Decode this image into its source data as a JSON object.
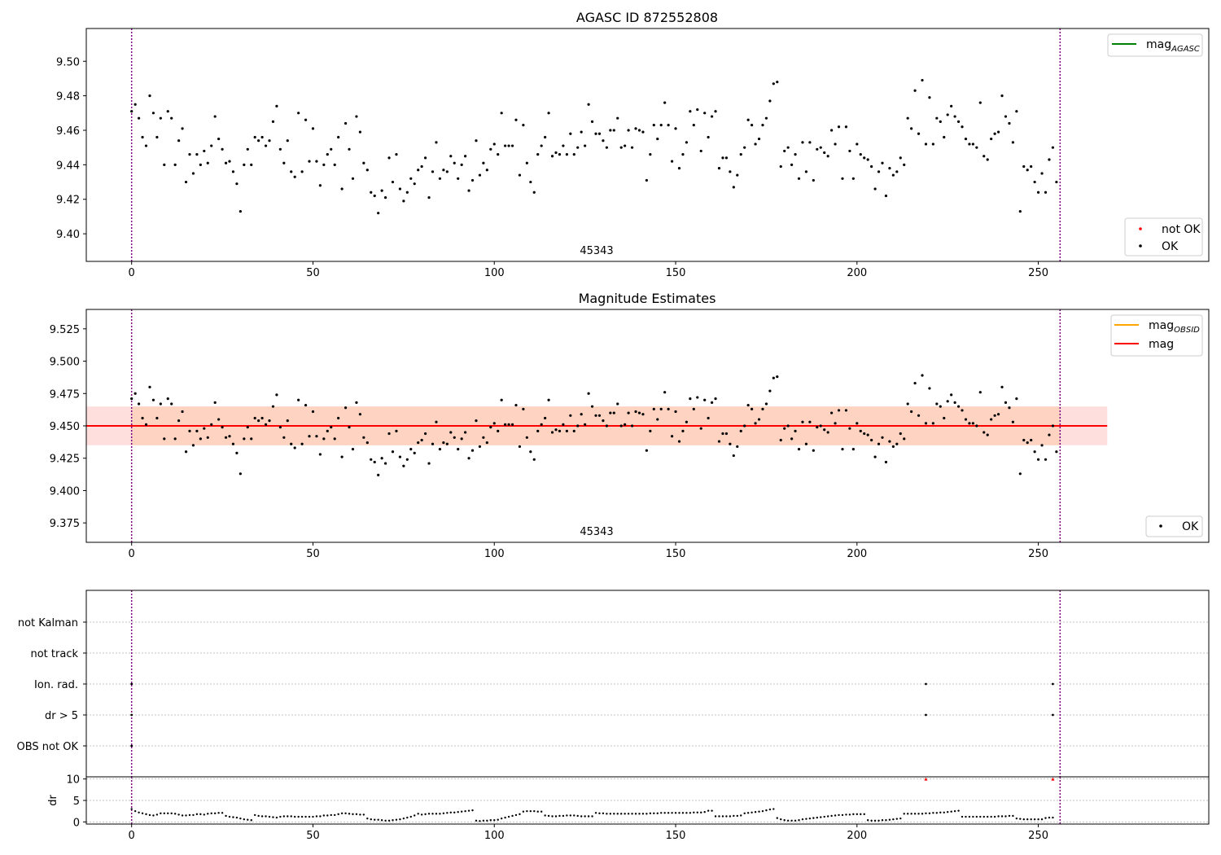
{
  "figure": {
    "title": "AGASC ID 872552808",
    "obsid_label": "45343"
  },
  "chart_data": [
    {
      "type": "scatter",
      "title": "AGASC ID 872552808",
      "xlim": [
        -12.5,
        297
      ],
      "ylim": [
        9.384,
        9.519
      ],
      "xticks": [
        0,
        50,
        100,
        150,
        200,
        250
      ],
      "yticks": [
        9.4,
        9.42,
        9.44,
        9.46,
        9.48,
        9.5
      ],
      "ytick_labels": [
        "9.40",
        "9.42",
        "9.44",
        "9.46",
        "9.48",
        "9.50"
      ],
      "vlines": [
        0,
        256
      ],
      "annotation": "45343",
      "legend_lines": [
        {
          "label": "mag",
          "sub": "AGASC",
          "color": "#008000"
        }
      ],
      "legend_markers": [
        {
          "label": "not OK",
          "color": "#ff0000"
        },
        {
          "label": "OK",
          "color": "#000000"
        }
      ],
      "series": [
        {
          "name": "OK",
          "color": "#000000",
          "y": [
            9.471,
            9.475,
            9.467,
            9.456,
            9.451,
            9.48,
            9.47,
            9.456,
            9.467,
            9.44,
            9.471,
            9.467,
            9.44,
            9.454,
            9.461,
            9.43,
            9.446,
            9.435,
            9.446,
            9.44,
            9.448,
            9.441,
            9.451,
            9.468,
            9.455,
            9.449,
            9.441,
            9.442,
            9.436,
            9.429,
            9.413,
            9.44,
            9.449,
            9.44,
            9.456,
            9.454,
            9.456,
            9.451,
            9.454,
            9.465,
            9.474,
            9.449,
            9.441,
            9.454,
            9.436,
            9.433,
            9.47,
            9.436,
            9.466,
            9.442,
            9.461,
            9.442,
            9.428,
            9.44,
            9.446,
            9.449,
            9.44,
            9.456,
            9.426,
            9.464,
            9.449,
            9.432,
            9.468,
            9.459,
            9.441,
            9.437,
            9.424,
            9.422,
            9.412,
            9.425,
            9.421,
            9.444,
            9.43,
            9.446,
            9.426,
            9.419,
            9.424,
            9.432,
            9.429,
            9.437,
            9.439,
            9.444,
            9.421,
            9.436,
            9.453,
            9.432,
            9.437,
            9.436,
            9.445,
            9.441,
            9.432,
            9.44,
            9.445,
            9.425,
            9.431,
            9.454,
            9.434,
            9.441,
            9.437,
            9.449,
            9.452,
            9.446,
            9.47,
            9.451,
            9.451,
            9.451,
            9.466,
            9.434,
            9.463,
            9.441,
            9.43,
            9.424,
            9.446,
            9.451,
            9.456,
            9.47,
            9.445,
            9.447,
            9.446,
            9.451,
            9.446,
            9.458,
            9.446,
            9.45,
            9.459,
            9.451,
            9.475,
            9.465,
            9.458,
            9.458,
            9.454,
            9.45,
            9.46,
            9.46,
            9.467,
            9.45,
            9.451,
            9.46,
            9.45,
            9.461,
            9.46,
            9.459,
            9.431,
            9.446,
            9.463,
            9.455,
            9.463,
            9.476,
            9.463,
            9.442,
            9.461,
            9.438,
            9.446,
            9.453,
            9.471,
            9.463,
            9.472,
            9.448,
            9.47,
            9.456,
            9.468,
            9.471,
            9.438,
            9.444,
            9.444,
            9.436,
            9.427,
            9.434,
            9.446,
            9.45,
            9.466,
            9.463,
            9.452,
            9.455,
            9.463,
            9.467,
            9.477,
            9.487,
            9.488,
            9.439,
            9.448,
            9.45,
            9.44,
            9.446,
            9.432,
            9.453,
            9.436,
            9.453,
            9.431,
            9.449,
            9.45,
            9.447,
            9.445,
            9.46,
            9.452,
            9.462,
            9.432,
            9.462,
            9.448,
            9.432,
            9.452,
            9.446,
            9.444,
            9.443,
            9.439,
            9.426,
            9.436,
            9.441,
            9.422,
            9.438,
            9.434,
            9.436,
            9.444,
            9.44,
            9.467,
            9.461,
            9.483,
            9.458,
            9.489,
            9.452,
            9.479,
            9.452,
            9.467,
            9.465,
            9.456,
            9.469,
            9.474,
            9.468,
            9.465,
            9.462,
            9.455,
            9.452,
            9.452,
            9.45,
            9.476,
            9.445,
            9.443,
            9.455,
            9.458,
            9.459,
            9.48,
            9.468,
            9.464,
            9.453,
            9.471,
            9.413,
            9.439,
            9.437,
            9.439,
            9.43,
            9.424,
            9.435,
            9.424,
            9.443,
            9.45,
            9.43
          ]
        }
      ]
    },
    {
      "type": "scatter",
      "title": "Magnitude Estimates",
      "xlim": [
        -12.5,
        297
      ],
      "ylim": [
        9.36,
        9.54
      ],
      "xticks": [
        0,
        50,
        100,
        150,
        200,
        250
      ],
      "yticks": [
        9.375,
        9.4,
        9.425,
        9.45,
        9.475,
        9.5,
        9.525
      ],
      "ytick_labels": [
        "9.375",
        "9.400",
        "9.425",
        "9.450",
        "9.475",
        "9.500",
        "9.525"
      ],
      "vlines": [
        0,
        256
      ],
      "annotation": "45343",
      "hlines": [
        {
          "name": "mag_OBSID",
          "y": 9.45,
          "x": [
            0,
            256
          ],
          "color": "#ffa500"
        },
        {
          "name": "mag",
          "y": 9.45,
          "x": [
            -12.5,
            269
          ],
          "color": "#ff0000"
        }
      ],
      "bands": [
        {
          "name": "mag_OBSID",
          "y": [
            9.435,
            9.465
          ],
          "x": [
            0,
            256
          ],
          "color": "#ffa500"
        },
        {
          "name": "mag",
          "y": [
            9.435,
            9.465
          ],
          "x": [
            -12.5,
            269
          ],
          "color": "#ff0000"
        }
      ],
      "legend_lines": [
        {
          "label": "mag",
          "sub": "OBSID",
          "color": "#ffa500"
        },
        {
          "label": "mag",
          "sub": "",
          "color": "#ff0000"
        }
      ],
      "legend_markers": [
        {
          "label": "OK",
          "color": "#000000"
        }
      ],
      "series": [
        {
          "name": "OK",
          "color": "#000000",
          "y_from": "same as panel 1"
        }
      ]
    },
    {
      "type": "scatter",
      "title": "",
      "xlim": [
        -12.5,
        297
      ],
      "categories": [
        "OBS not OK",
        "dr > 5",
        "Ion. rad.",
        "not track",
        "not Kalman"
      ],
      "vlines": [
        0,
        256
      ],
      "flags": [
        {
          "category": "dr > 5",
          "x": [
            0,
            219,
            254
          ]
        },
        {
          "category": "Ion. rad.",
          "x": [
            0,
            219,
            254
          ]
        },
        {
          "category": "OBS not OK",
          "x": [
            0
          ]
        }
      ]
    },
    {
      "type": "scatter",
      "title": "",
      "ylabel": "dr",
      "xlim": [
        -12.5,
        297
      ],
      "ylim": [
        -0.5,
        10.5
      ],
      "xticks": [
        0,
        50,
        100,
        150,
        200,
        250
      ],
      "yticks": [
        0,
        5,
        10
      ],
      "vlines": [
        0,
        256
      ],
      "series": [
        {
          "name": "OK",
          "color": "#000000",
          "y": [
            3.0,
            2.5,
            2.2,
            2.0,
            1.8,
            1.6,
            1.5,
            1.7,
            2.0,
            2.0,
            2.0,
            2.0,
            1.9,
            1.7,
            1.5,
            1.5,
            1.6,
            1.6,
            1.8,
            1.8,
            1.7,
            1.9,
            2.0,
            2.0,
            2.1,
            2.1,
            1.4,
            1.2,
            1.1,
            1.0,
            0.8,
            0.6,
            0.5,
            0.4,
            1.6,
            1.4,
            1.3,
            1.3,
            1.2,
            1.1,
            1.0,
            1.2,
            1.3,
            1.3,
            1.3,
            1.2,
            1.2,
            1.2,
            1.2,
            1.2,
            1.2,
            1.3,
            1.3,
            1.5,
            1.5,
            1.6,
            1.6,
            1.8,
            2.0,
            2.0,
            1.9,
            1.8,
            1.8,
            1.7,
            1.7,
            0.8,
            0.6,
            0.5,
            0.5,
            0.4,
            0.3,
            0.3,
            0.4,
            0.5,
            0.6,
            0.8,
            1.0,
            1.2,
            1.5,
            1.9,
            1.7,
            1.8,
            1.9,
            1.9,
            1.9,
            1.9,
            2.0,
            2.1,
            2.2,
            2.2,
            2.3,
            2.4,
            2.5,
            2.6,
            2.7,
            0.3,
            0.2,
            0.3,
            0.3,
            0.4,
            0.4,
            0.5,
            0.8,
            1.0,
            1.2,
            1.4,
            1.6,
            1.8,
            2.4,
            2.5,
            2.5,
            2.5,
            2.4,
            2.4,
            1.5,
            1.4,
            1.3,
            1.3,
            1.4,
            1.4,
            1.5,
            1.5,
            1.5,
            1.4,
            1.3,
            1.3,
            1.3,
            1.3,
            2.1,
            2.0,
            2.0,
            1.9,
            1.9,
            1.9,
            1.9,
            1.9,
            1.9,
            1.9,
            1.9,
            1.9,
            1.9,
            1.9,
            1.9,
            2.0,
            2.0,
            2.0,
            2.1,
            2.1,
            2.1,
            2.1,
            2.1,
            2.1,
            2.1,
            2.1,
            2.1,
            2.2,
            2.2,
            2.2,
            2.3,
            2.6,
            2.6,
            1.3,
            1.3,
            1.3,
            1.3,
            1.3,
            1.4,
            1.4,
            1.5,
            2.0,
            2.1,
            2.2,
            2.3,
            2.4,
            2.5,
            2.7,
            2.9,
            3.0,
            0.9,
            0.6,
            0.4,
            0.3,
            0.3,
            0.3,
            0.4,
            0.6,
            0.7,
            0.8,
            0.9,
            1.0,
            1.1,
            1.2,
            1.3,
            1.4,
            1.5,
            1.6,
            1.6,
            1.7,
            1.7,
            1.8,
            1.8,
            1.8,
            1.8,
            0.4,
            0.3,
            0.3,
            0.3,
            0.4,
            0.4,
            0.5,
            0.6,
            0.7,
            0.8,
            1.9,
            1.9,
            1.9,
            1.9,
            1.9,
            1.9,
            2.0,
            2.0,
            2.1,
            2.1,
            2.2,
            2.2,
            2.3,
            2.4,
            2.5,
            2.6,
            1.2,
            1.2,
            1.2,
            1.2,
            1.2,
            1.2,
            1.2,
            1.2,
            1.2,
            1.2,
            1.3,
            1.3,
            1.3,
            1.4,
            1.4,
            0.8,
            0.7,
            0.6,
            0.6,
            0.6,
            0.6,
            0.6,
            0.6,
            0.9,
            1.0,
            1.0
          ]
        },
        {
          "name": "not OK",
          "color": "#ff0000",
          "points": [
            [
              219,
              10.0
            ],
            [
              254,
              10.0
            ]
          ]
        }
      ]
    }
  ]
}
